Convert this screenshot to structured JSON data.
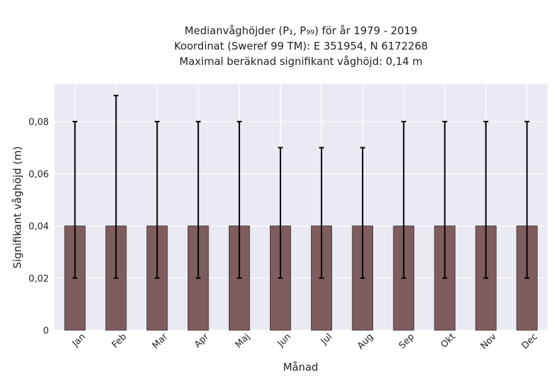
{
  "chart_data": {
    "type": "bar",
    "title_lines": [
      "Medianvåghöjder (P₁, P₉₉) för år 1979 - 2019",
      "Koordinat (Sweref 99 TM): E 351954, N 6172268",
      "Maximal beräknad signifikant våghöjd: 0,14 m"
    ],
    "xlabel": "Månad",
    "ylabel": "Signifikant våghöjd (m)",
    "categories": [
      "Jan",
      "Feb",
      "Mar",
      "Apr",
      "Maj",
      "Jun",
      "Jul",
      "Aug",
      "Sep",
      "Okt",
      "Nov",
      "Dec"
    ],
    "values": [
      0.04,
      0.04,
      0.04,
      0.04,
      0.04,
      0.04,
      0.04,
      0.04,
      0.04,
      0.04,
      0.04,
      0.04
    ],
    "p1": [
      0.02,
      0.02,
      0.02,
      0.02,
      0.02,
      0.02,
      0.02,
      0.02,
      0.02,
      0.02,
      0.02,
      0.02
    ],
    "p99": [
      0.08,
      0.09,
      0.08,
      0.08,
      0.08,
      0.07,
      0.07,
      0.07,
      0.08,
      0.08,
      0.08,
      0.08
    ],
    "ylim": [
      0,
      0.0945
    ],
    "yticks": [
      0,
      0.02,
      0.04,
      0.06,
      0.08
    ],
    "ytick_labels": [
      "0",
      "0,02",
      "0,04",
      "0,06",
      "0,08"
    ],
    "grid": true,
    "colors": {
      "bar": "#7d5d5e",
      "bar_edge": "#3a2c2c",
      "error": "#000000",
      "plot_bg": "#eaeaf2",
      "grid": "#ffffff"
    }
  }
}
